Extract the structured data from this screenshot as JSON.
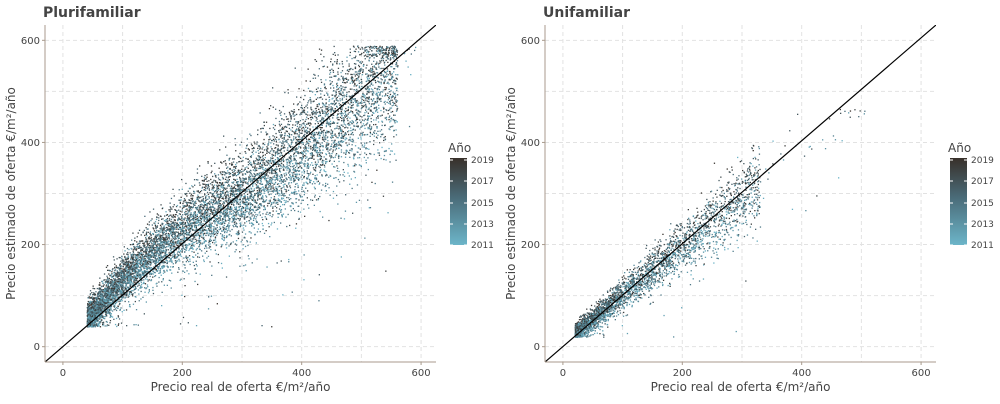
{
  "chart_data": [
    {
      "type": "scatter",
      "title": "Plurifamiliar",
      "xlabel": "Precio real de oferta €/m²/año",
      "ylabel": "Precio estimado de oferta €/m²/año",
      "xlim": [
        -30,
        625
      ],
      "ylim": [
        -30,
        630
      ],
      "xticks": [
        "0",
        "200",
        "400",
        "600"
      ],
      "yticks": [
        "0",
        "200",
        "400",
        "600"
      ],
      "grid": true,
      "reference_line": "identity",
      "legend": {
        "title": "Año",
        "placement": "right",
        "labels": [
          "2019",
          "2017",
          "2015",
          "2013",
          "2011"
        ]
      },
      "point_cloud": {
        "x_range": [
          40,
          600
        ],
        "y_range": [
          40,
          590
        ],
        "bias_over_x": 1.3,
        "approx_points": 9000
      }
    },
    {
      "type": "scatter",
      "title": "Unifamiliar",
      "xlabel": "Precio real de oferta €/m²/año",
      "ylabel": "Precio estimado de oferta €/m²/año",
      "xlim": [
        -30,
        625
      ],
      "ylim": [
        -30,
        630
      ],
      "xticks": [
        "0",
        "200",
        "400",
        "600"
      ],
      "yticks": [
        "0",
        "200",
        "400",
        "600"
      ],
      "grid": true,
      "reference_line": "identity",
      "legend": {
        "title": "Año",
        "placement": "right",
        "labels": [
          "2019",
          "2017",
          "2015",
          "2013",
          "2011"
        ]
      },
      "point_cloud": {
        "x_range": [
          20,
          510
        ],
        "y_range": [
          20,
          470
        ],
        "bias_over_x": 0.8,
        "approx_points": 3500
      }
    }
  ],
  "colors": {
    "year_low": "#6cb5c9",
    "year_high": "#38302a",
    "grid": "#e2e2e2",
    "axis": "#a89a8c",
    "text": "#444444",
    "title": "#444444"
  }
}
